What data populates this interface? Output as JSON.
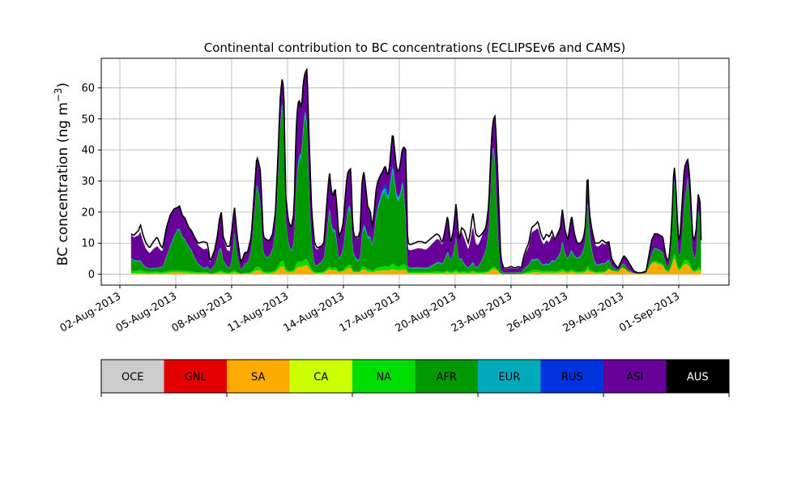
{
  "chart_data": {
    "type": "area",
    "stacked": true,
    "title": "Continental contribution to BC concentrations (ECLIPSEv6 and CAMS)",
    "xlabel": "",
    "ylabel": "BC concentration (ng m⁻³)",
    "ylabel_main": "BC concentration (ng m",
    "ylabel_sup": "−3",
    "ylabel_close": ")",
    "xlim": [
      0.0,
      33.7
    ],
    "ylim": [
      -3.5,
      69.5
    ],
    "grid": true,
    "x_ticks": [
      {
        "day": 1.0,
        "label": "02-Aug-2013"
      },
      {
        "day": 4.0,
        "label": "05-Aug-2013"
      },
      {
        "day": 7.0,
        "label": "08-Aug-2013"
      },
      {
        "day": 10.0,
        "label": "11-Aug-2013"
      },
      {
        "day": 13.0,
        "label": "14-Aug-2013"
      },
      {
        "day": 16.0,
        "label": "17-Aug-2013"
      },
      {
        "day": 19.0,
        "label": "20-Aug-2013"
      },
      {
        "day": 22.0,
        "label": "23-Aug-2013"
      },
      {
        "day": 25.0,
        "label": "26-Aug-2013"
      },
      {
        "day": 28.0,
        "label": "29-Aug-2013"
      },
      {
        "day": 31.0,
        "label": "01-Sep-2013"
      }
    ],
    "y_ticks": [
      0,
      10,
      20,
      30,
      40,
      50,
      60
    ],
    "total_keypoints": [
      [
        1.6,
        13
      ],
      [
        1.75,
        12.5
      ],
      [
        1.9,
        13.5
      ],
      [
        2.0,
        14
      ],
      [
        2.1,
        16
      ],
      [
        2.25,
        12.5
      ],
      [
        2.4,
        10
      ],
      [
        2.6,
        8.5
      ],
      [
        2.8,
        10.5
      ],
      [
        3.0,
        12
      ],
      [
        3.2,
        9
      ],
      [
        3.3,
        8.5
      ],
      [
        3.5,
        15
      ],
      [
        3.7,
        19
      ],
      [
        3.9,
        21
      ],
      [
        4.1,
        21.5
      ],
      [
        4.2,
        22
      ],
      [
        4.35,
        19
      ],
      [
        4.5,
        18
      ],
      [
        4.7,
        15
      ],
      [
        4.85,
        14
      ],
      [
        5.0,
        12
      ],
      [
        5.2,
        10
      ],
      [
        5.5,
        10.5
      ],
      [
        5.7,
        10
      ],
      [
        5.85,
        4
      ],
      [
        6.1,
        8
      ],
      [
        6.25,
        13
      ],
      [
        6.35,
        18
      ],
      [
        6.45,
        20
      ],
      [
        6.55,
        12
      ],
      [
        6.75,
        9
      ],
      [
        6.9,
        9
      ],
      [
        7.05,
        16
      ],
      [
        7.15,
        22
      ],
      [
        7.3,
        12
      ],
      [
        7.5,
        3.5
      ],
      [
        7.7,
        7
      ],
      [
        7.85,
        7
      ],
      [
        8.05,
        12
      ],
      [
        8.2,
        25
      ],
      [
        8.35,
        38
      ],
      [
        8.45,
        36
      ],
      [
        8.55,
        33
      ],
      [
        8.7,
        12
      ],
      [
        8.9,
        11
      ],
      [
        9.05,
        11
      ],
      [
        9.2,
        13
      ],
      [
        9.35,
        20
      ],
      [
        9.5,
        40
      ],
      [
        9.6,
        56
      ],
      [
        9.7,
        63
      ],
      [
        9.8,
        60
      ],
      [
        9.9,
        25
      ],
      [
        10.05,
        17
      ],
      [
        10.2,
        15
      ],
      [
        10.35,
        20
      ],
      [
        10.45,
        45
      ],
      [
        10.55,
        55
      ],
      [
        10.65,
        56
      ],
      [
        10.75,
        53
      ],
      [
        10.85,
        62
      ],
      [
        10.95,
        65
      ],
      [
        11.05,
        66
      ],
      [
        11.15,
        45
      ],
      [
        11.3,
        20
      ],
      [
        11.45,
        10
      ],
      [
        11.6,
        8.5
      ],
      [
        11.8,
        9
      ],
      [
        11.95,
        10
      ],
      [
        12.15,
        26
      ],
      [
        12.25,
        33
      ],
      [
        12.35,
        27
      ],
      [
        12.45,
        25
      ],
      [
        12.55,
        28
      ],
      [
        12.65,
        22
      ],
      [
        12.75,
        12
      ],
      [
        12.9,
        14
      ],
      [
        13.0,
        17
      ],
      [
        13.1,
        25
      ],
      [
        13.2,
        32
      ],
      [
        13.3,
        33.5
      ],
      [
        13.4,
        34
      ],
      [
        13.5,
        15
      ],
      [
        13.6,
        12
      ],
      [
        13.8,
        12
      ],
      [
        13.9,
        14
      ],
      [
        14.0,
        30
      ],
      [
        14.1,
        33
      ],
      [
        14.2,
        28
      ],
      [
        14.3,
        22
      ],
      [
        14.45,
        20
      ],
      [
        14.55,
        15
      ],
      [
        14.65,
        20
      ],
      [
        14.75,
        27
      ],
      [
        14.85,
        30
      ],
      [
        15.0,
        32
      ],
      [
        15.1,
        33
      ],
      [
        15.25,
        35
      ],
      [
        15.35,
        32
      ],
      [
        15.45,
        33
      ],
      [
        15.55,
        40
      ],
      [
        15.65,
        46
      ],
      [
        15.75,
        40
      ],
      [
        15.85,
        34
      ],
      [
        15.95,
        33
      ],
      [
        16.05,
        35
      ],
      [
        16.15,
        40
      ],
      [
        16.25,
        41
      ],
      [
        16.35,
        40
      ],
      [
        16.45,
        10
      ],
      [
        16.6,
        9.5
      ],
      [
        16.8,
        10
      ],
      [
        17.0,
        10.5
      ],
      [
        17.2,
        10.5
      ],
      [
        17.4,
        10
      ],
      [
        17.6,
        11
      ],
      [
        17.8,
        12
      ],
      [
        18.0,
        13
      ],
      [
        18.15,
        12.5
      ],
      [
        18.3,
        10
      ],
      [
        18.45,
        14
      ],
      [
        18.6,
        19
      ],
      [
        18.75,
        10
      ],
      [
        18.9,
        14
      ],
      [
        19.05,
        23
      ],
      [
        19.2,
        11
      ],
      [
        19.35,
        15
      ],
      [
        19.5,
        14
      ],
      [
        19.7,
        10
      ],
      [
        19.8,
        13
      ],
      [
        19.95,
        20
      ],
      [
        20.1,
        13
      ],
      [
        20.25,
        12
      ],
      [
        20.45,
        13
      ],
      [
        20.65,
        15
      ],
      [
        20.8,
        22
      ],
      [
        20.95,
        44
      ],
      [
        21.05,
        50
      ],
      [
        21.15,
        51
      ],
      [
        21.3,
        30
      ],
      [
        21.45,
        5
      ],
      [
        21.6,
        2
      ],
      [
        21.8,
        2
      ],
      [
        22.0,
        2.5
      ],
      [
        22.2,
        2
      ],
      [
        22.4,
        2.5
      ],
      [
        22.55,
        2
      ],
      [
        22.65,
        5
      ],
      [
        22.8,
        8
      ],
      [
        22.95,
        10
      ],
      [
        23.1,
        15
      ],
      [
        23.3,
        16
      ],
      [
        23.45,
        17
      ],
      [
        23.6,
        13
      ],
      [
        23.75,
        11
      ],
      [
        23.9,
        13
      ],
      [
        24.05,
        12
      ],
      [
        24.2,
        14
      ],
      [
        24.35,
        11
      ],
      [
        24.5,
        13
      ],
      [
        24.65,
        15
      ],
      [
        24.75,
        21
      ],
      [
        24.9,
        14
      ],
      [
        25.05,
        11
      ],
      [
        25.25,
        19
      ],
      [
        25.4,
        13
      ],
      [
        25.55,
        10
      ],
      [
        25.75,
        10
      ],
      [
        25.9,
        12
      ],
      [
        26.0,
        16
      ],
      [
        26.05,
        23
      ],
      [
        26.1,
        35
      ],
      [
        26.2,
        20
      ],
      [
        26.35,
        14
      ],
      [
        26.5,
        10
      ],
      [
        26.7,
        10
      ],
      [
        26.9,
        11
      ],
      [
        27.1,
        10
      ],
      [
        27.25,
        10.5
      ],
      [
        27.4,
        5
      ],
      [
        27.6,
        3
      ],
      [
        27.75,
        2
      ],
      [
        27.9,
        4
      ],
      [
        28.05,
        6
      ],
      [
        28.2,
        5
      ],
      [
        28.4,
        3
      ],
      [
        28.6,
        1
      ],
      [
        28.8,
        0.5
      ],
      [
        29.0,
        0.5
      ],
      [
        29.25,
        1
      ],
      [
        29.4,
        6
      ],
      [
        29.55,
        11
      ],
      [
        29.7,
        13
      ],
      [
        29.85,
        13
      ],
      [
        30.0,
        12.5
      ],
      [
        30.15,
        12
      ],
      [
        30.3,
        6
      ],
      [
        30.45,
        4
      ],
      [
        30.55,
        9
      ],
      [
        30.65,
        20
      ],
      [
        30.75,
        36
      ],
      [
        30.85,
        28
      ],
      [
        30.95,
        14
      ],
      [
        31.05,
        10
      ],
      [
        31.15,
        20
      ],
      [
        31.3,
        34
      ],
      [
        31.4,
        36
      ],
      [
        31.5,
        37
      ],
      [
        31.6,
        30
      ],
      [
        31.75,
        12
      ],
      [
        31.85,
        11
      ],
      [
        31.95,
        15
      ],
      [
        32.05,
        26
      ],
      [
        32.15,
        23
      ],
      [
        32.2,
        11
      ]
    ],
    "series_fraction_keypoints": [
      {
        "name": "SA",
        "points": [
          [
            1.6,
            0.03
          ],
          [
            7.0,
            0.03
          ],
          [
            12.5,
            0.05
          ],
          [
            13.3,
            0.06
          ],
          [
            14.5,
            0.04
          ],
          [
            20.0,
            0.03
          ],
          [
            27.0,
            0.05
          ],
          [
            27.9,
            0.45
          ],
          [
            28.3,
            0.2
          ],
          [
            29.0,
            0.4
          ],
          [
            30.3,
            0.2
          ],
          [
            31.2,
            0.1
          ],
          [
            32.2,
            0.05
          ]
        ]
      },
      {
        "name": "CA",
        "points": [
          [
            1.6,
            0.0
          ],
          [
            32.2,
            0.0
          ]
        ]
      },
      {
        "name": "NA",
        "points": [
          [
            1.6,
            0.05
          ],
          [
            2.0,
            0.06
          ],
          [
            4.0,
            0.03
          ],
          [
            8.5,
            0.03
          ],
          [
            13.5,
            0.03
          ],
          [
            16.5,
            0.04
          ],
          [
            20.0,
            0.03
          ],
          [
            22.0,
            0.0
          ],
          [
            23.0,
            0.05
          ],
          [
            27.0,
            0.03
          ],
          [
            28.5,
            0.0
          ],
          [
            30.0,
            0.05
          ],
          [
            32.2,
            0.03
          ]
        ]
      },
      {
        "name": "AFR",
        "points": [
          [
            1.6,
            0.3
          ],
          [
            2.2,
            0.15
          ],
          [
            3.0,
            0.08
          ],
          [
            3.5,
            0.3
          ],
          [
            4.1,
            0.6
          ],
          [
            4.8,
            0.5
          ],
          [
            5.5,
            0.1
          ],
          [
            6.3,
            0.4
          ],
          [
            6.9,
            0.15
          ],
          [
            7.15,
            0.55
          ],
          [
            7.5,
            0.3
          ],
          [
            8.35,
            0.7
          ],
          [
            8.9,
            0.4
          ],
          [
            9.7,
            0.8
          ],
          [
            10.2,
            0.4
          ],
          [
            10.95,
            0.72
          ],
          [
            11.5,
            0.2
          ],
          [
            12.25,
            0.55
          ],
          [
            12.8,
            0.3
          ],
          [
            13.3,
            0.55
          ],
          [
            13.8,
            0.25
          ],
          [
            14.3,
            0.45
          ],
          [
            15.1,
            0.7
          ],
          [
            15.65,
            0.65
          ],
          [
            16.2,
            0.62
          ],
          [
            16.45,
            0.12
          ],
          [
            17.5,
            0.1
          ],
          [
            18.6,
            0.3
          ],
          [
            19.05,
            0.45
          ],
          [
            19.5,
            0.15
          ],
          [
            20.2,
            0.1
          ],
          [
            21.05,
            0.78
          ],
          [
            21.4,
            0.2
          ],
          [
            22.2,
            0.2
          ],
          [
            23.2,
            0.2
          ],
          [
            24.0,
            0.15
          ],
          [
            24.75,
            0.4
          ],
          [
            25.3,
            0.3
          ],
          [
            26.1,
            0.65
          ],
          [
            26.6,
            0.2
          ],
          [
            27.3,
            0.25
          ],
          [
            28.1,
            0.2
          ],
          [
            28.8,
            0.0
          ],
          [
            29.7,
            0.3
          ],
          [
            30.4,
            0.3
          ],
          [
            30.75,
            0.7
          ],
          [
            31.1,
            0.3
          ],
          [
            31.5,
            0.72
          ],
          [
            31.9,
            0.3
          ],
          [
            32.05,
            0.7
          ],
          [
            32.2,
            0.6
          ]
        ]
      },
      {
        "name": "EUR",
        "points": [
          [
            1.6,
            0.02
          ],
          [
            5.0,
            0.02
          ],
          [
            9.7,
            0.02
          ],
          [
            15.6,
            0.04
          ],
          [
            20.0,
            0.02
          ],
          [
            26.1,
            0.03
          ],
          [
            30.0,
            0.02
          ],
          [
            32.2,
            0.02
          ]
        ]
      },
      {
        "name": "RUS",
        "points": [
          [
            1.6,
            0.0
          ],
          [
            14.9,
            0.0
          ],
          [
            15.3,
            0.04
          ],
          [
            15.8,
            0.01
          ],
          [
            16.2,
            0.0
          ],
          [
            26.0,
            0.0
          ],
          [
            26.1,
            0.03
          ],
          [
            26.3,
            0.0
          ],
          [
            32.2,
            0.0
          ]
        ]
      },
      {
        "name": "ASI",
        "points": [
          [
            1.6,
            0.58
          ],
          [
            32.2,
            0.58
          ]
        ]
      }
    ],
    "outline_series": "AUS",
    "legend": [
      {
        "name": "OCE",
        "color": "#cccccc",
        "text_color": "#000000"
      },
      {
        "name": "GNL",
        "color": "#e50000",
        "text_color": "#000000"
      },
      {
        "name": "SA",
        "color": "#ffaa00",
        "text_color": "#000000"
      },
      {
        "name": "CA",
        "color": "#ccff00",
        "text_color": "#000000"
      },
      {
        "name": "NA",
        "color": "#00dd00",
        "text_color": "#000000"
      },
      {
        "name": "AFR",
        "color": "#009900",
        "text_color": "#000000"
      },
      {
        "name": "EUR",
        "color": "#00aabb",
        "text_color": "#000000"
      },
      {
        "name": "RUS",
        "color": "#0033dd",
        "text_color": "#000000"
      },
      {
        "name": "ASI",
        "color": "#660099",
        "text_color": "#000000"
      },
      {
        "name": "AUS",
        "color": "#000000",
        "text_color": "#ffffff"
      }
    ]
  }
}
